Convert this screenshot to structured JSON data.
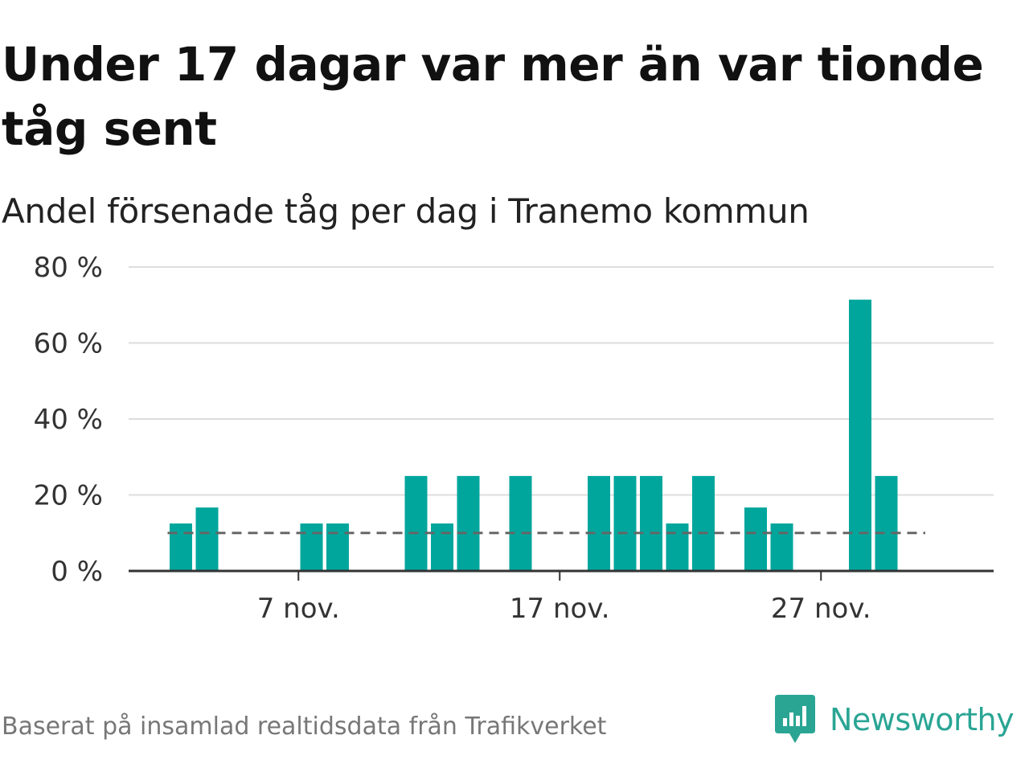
{
  "title": "Under 17 dagar var mer än var tionde tåg sent",
  "subtitle": "Andel försenade tåg per dag i Tranemo kommun",
  "footer": "Baserat på insamlad realtidsdata från Trafikverket",
  "brand": {
    "name": "Newsworthy",
    "color": "#2aa594"
  },
  "colors": {
    "bar": "#00a69c",
    "grid": "#dddddd",
    "axis": "#333333",
    "reference": "#666666"
  },
  "chart_data": {
    "type": "bar",
    "title": "Andel försenade tåg per dag i Tranemo kommun",
    "xlabel": "",
    "ylabel": "",
    "ylim": [
      0,
      80
    ],
    "yticks": [
      0,
      20,
      40,
      60,
      80
    ],
    "ytick_labels": [
      "0 %",
      "20 %",
      "40 %",
      "60 %",
      "80 %"
    ],
    "x_range": [
      1,
      30
    ],
    "xticks": [
      7,
      17,
      27
    ],
    "xtick_labels": [
      "7 nov.",
      "17 nov.",
      "27 nov."
    ],
    "reference_line": {
      "value": 10,
      "x_from": 1,
      "x_to": 30,
      "style": "dashed"
    },
    "x": [
      2,
      3,
      7,
      8,
      11,
      12,
      13,
      15,
      18,
      19,
      20,
      21,
      22,
      24,
      25,
      28,
      29
    ],
    "values": [
      12.5,
      16.7,
      12.5,
      12.5,
      25,
      12.5,
      25,
      25,
      25,
      25,
      25,
      12.5,
      25,
      16.7,
      12.5,
      71.4,
      25
    ]
  }
}
